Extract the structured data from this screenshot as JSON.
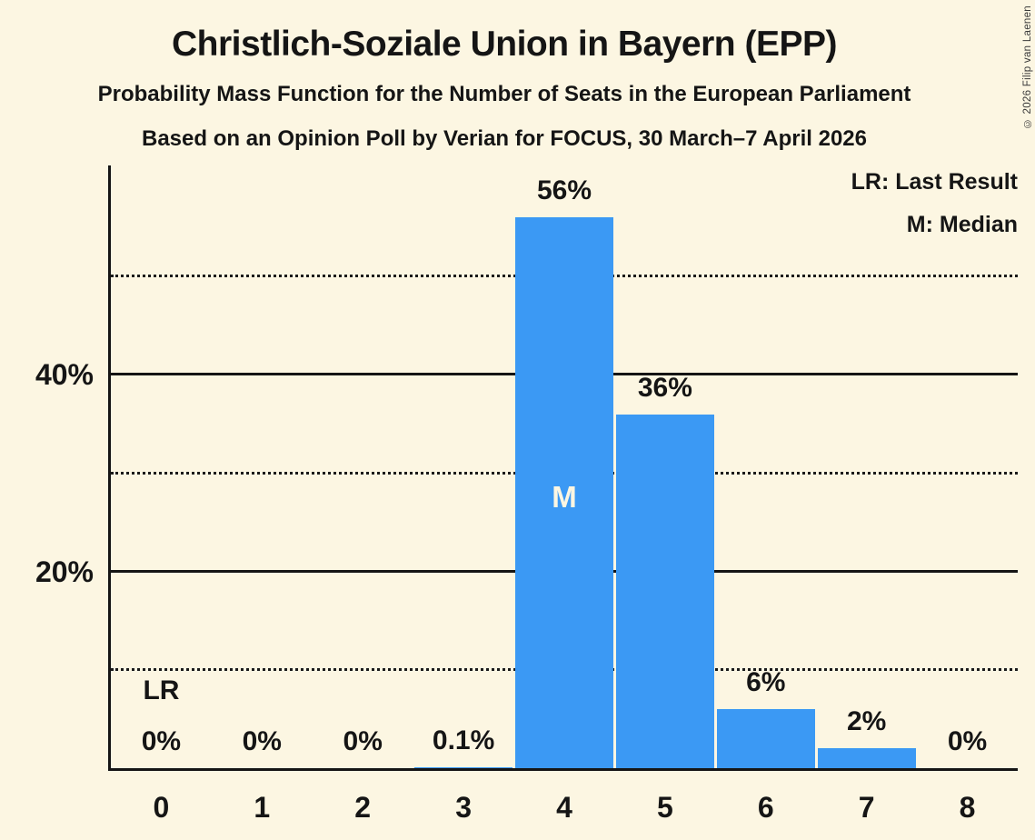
{
  "title": "Christlich-Soziale Union in Bayern (EPP)",
  "subtitles": [
    "Probability Mass Function for the Number of Seats in the European Parliament",
    "Based on an Opinion Poll by Verian for FOCUS, 30 March–7 April 2026"
  ],
  "copyright": "© 2026 Filip van Laenen",
  "legend": {
    "lr_label": "LR: Last Result",
    "m_label": "M: Median"
  },
  "colors": {
    "background": "#FCF6E2",
    "bar": "#3B99F4",
    "text": "#151515",
    "median_text": "#FCF6E2"
  },
  "chart_data": {
    "type": "bar",
    "title": "Christlich-Soziale Union in Bayern (EPP)",
    "categories": [
      "0",
      "1",
      "2",
      "3",
      "4",
      "5",
      "6",
      "7",
      "8"
    ],
    "values": [
      0,
      0,
      0,
      0.1,
      56,
      36,
      6,
      2,
      0
    ],
    "bar_labels": [
      "0%",
      "0%",
      "0%",
      "0.1%",
      "56%",
      "36%",
      "6%",
      "2%",
      "0%"
    ],
    "xlabel": "",
    "ylabel": "",
    "ylim": [
      0,
      61.3
    ],
    "yticks": [
      {
        "value": 20,
        "label": "20%"
      },
      {
        "value": 40,
        "label": "40%"
      }
    ],
    "gridlines_solid": [
      20,
      40
    ],
    "gridlines_dotted": [
      10,
      30,
      50
    ],
    "legend_position": "top-right",
    "annotations": {
      "median_seat": 4,
      "median_text": "M",
      "last_result_seat": 0,
      "last_result_text": "LR"
    }
  }
}
